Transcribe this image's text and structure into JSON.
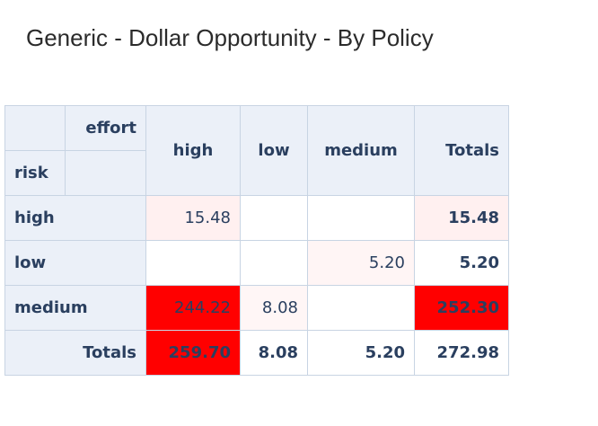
{
  "title": "Generic - Dollar Opportunity - By Policy",
  "table": {
    "column_field": "effort",
    "row_field": "risk",
    "columns": [
      "high",
      "low",
      "medium",
      "Totals"
    ],
    "rows": [
      {
        "label": "high",
        "cells": [
          "15.48",
          null,
          null,
          "15.48"
        ],
        "colors": [
          "#fff0f0",
          "#ffffff",
          "#ffffff",
          "#fff0f0"
        ]
      },
      {
        "label": "low",
        "cells": [
          null,
          null,
          "5.20",
          "5.20"
        ],
        "colors": [
          "#ffffff",
          "#ffffff",
          "#fff5f5",
          "#ffffff"
        ]
      },
      {
        "label": "medium",
        "cells": [
          "244.22",
          "8.08",
          null,
          "252.30"
        ],
        "colors": [
          "#ff0000",
          "#fff6f6",
          "#ffffff",
          "#ff0000"
        ]
      },
      {
        "label": "Totals",
        "cells": [
          "259.70",
          "8.08",
          "5.20",
          "272.98"
        ],
        "colors": [
          "#ff0000",
          "#ffffff",
          "#ffffff",
          "#ffffff"
        ]
      }
    ]
  }
}
